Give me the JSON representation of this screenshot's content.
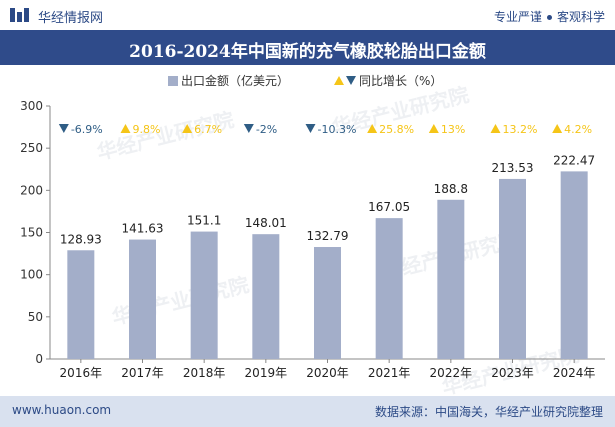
{
  "header": {
    "brand": "华经情报网",
    "tagline_left": "专业严谨",
    "tagline_right": "客观科学"
  },
  "footer": {
    "site": "www.huaon.com",
    "source": "数据来源：中国海关，华经产业研究院整理"
  },
  "watermark": "华经产业研究院",
  "colors": {
    "bar": "#a3aec9",
    "title_bg": "#2f4b8a",
    "up": "#f5c518",
    "down": "#2f5d85"
  },
  "chart_data": {
    "type": "bar",
    "title": "2016-2024年中国新的充气橡胶轮胎出口金额",
    "categories": [
      "2016年",
      "2017年",
      "2018年",
      "2019年",
      "2020年",
      "2021年",
      "2022年",
      "2023年",
      "2024年"
    ],
    "series": [
      {
        "name": "出口金额（亿美元）",
        "values": [
          128.93,
          141.63,
          151.1,
          148.01,
          132.79,
          167.05,
          188.8,
          213.53,
          222.47
        ]
      },
      {
        "name": "同比增长（%）",
        "values": [
          -6.9,
          9.8,
          6.7,
          -2,
          -10.3,
          25.8,
          13,
          13.2,
          4.2
        ]
      }
    ],
    "value_labels": [
      "128.93",
      "141.63",
      "151.1",
      "148.01",
      "132.79",
      "167.05",
      "188.8",
      "213.53",
      "222.47"
    ],
    "growth_labels": [
      "-6.9%",
      "9.8%",
      "6.7%",
      "-2%",
      "-10.3%",
      "25.8%",
      "13%",
      "13.2%",
      "4.2%"
    ],
    "ylim": [
      0,
      300
    ],
    "yticks": [
      "0",
      "50",
      "100",
      "150",
      "200",
      "250",
      "300"
    ],
    "legend_position": "top-center"
  }
}
